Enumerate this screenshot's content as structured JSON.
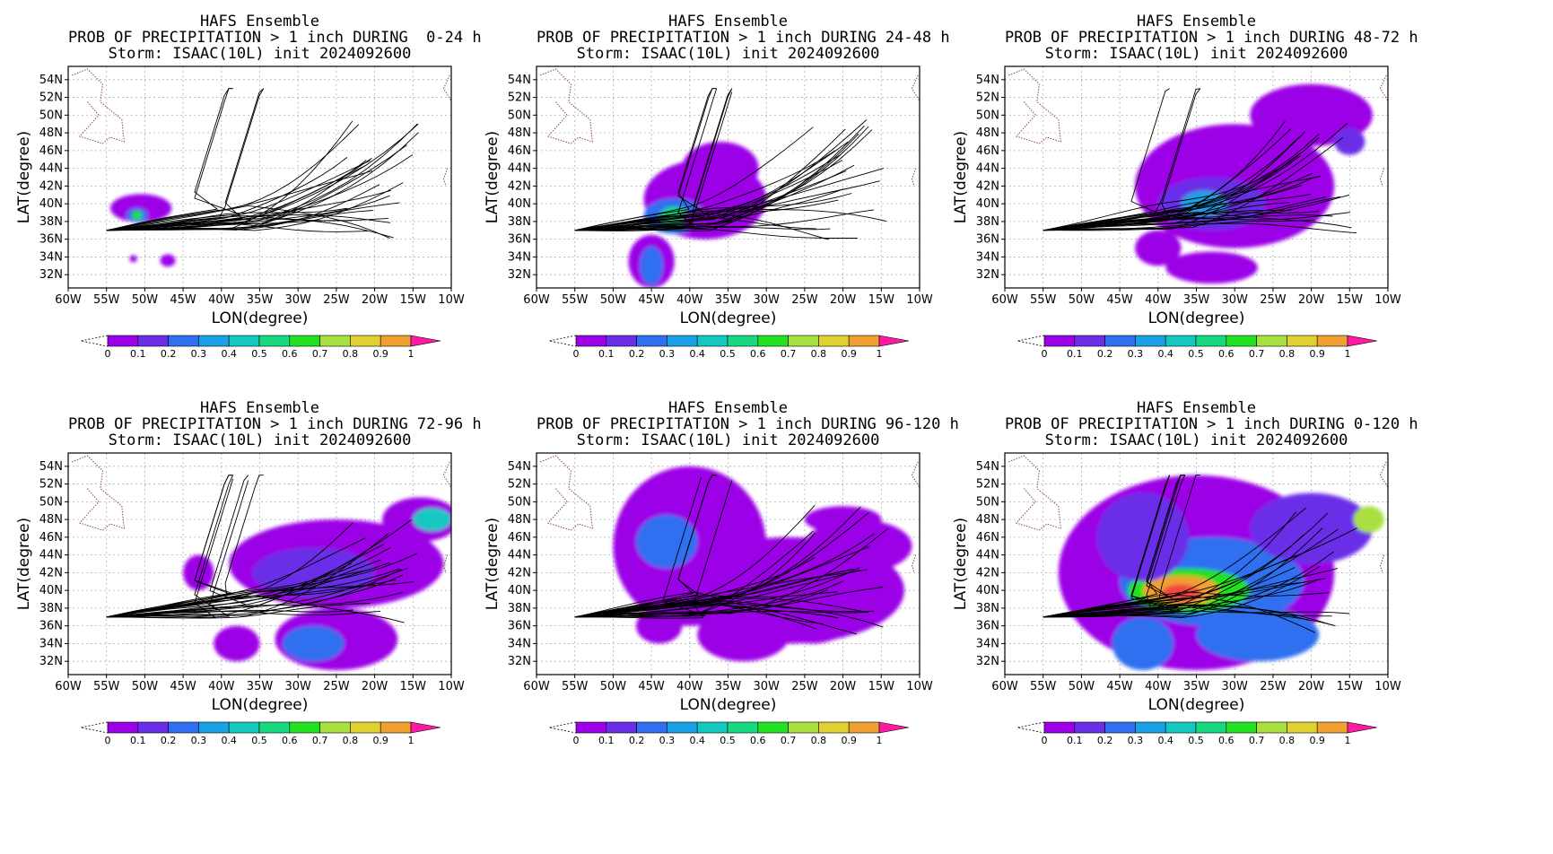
{
  "panels": [
    {
      "title1": "HAFS Ensemble",
      "title2": "PROB OF PRECIPITATION > 1 inch DURING  0-24 h",
      "title3": "Storm: ISAAC(10L) init 2024092600"
    },
    {
      "title1": "HAFS Ensemble",
      "title2": "PROB OF PRECIPITATION > 1 inch DURING 24-48 h",
      "title3": "Storm: ISAAC(10L) init 2024092600"
    },
    {
      "title1": "HAFS Ensemble",
      "title2": "PROB OF PRECIPITATION > 1 inch DURING 48-72 h",
      "title3": "Storm: ISAAC(10L) init 2024092600"
    },
    {
      "title1": "HAFS Ensemble",
      "title2": "PROB OF PRECIPITATION > 1 inch DURING 72-96 h",
      "title3": "Storm: ISAAC(10L) init 2024092600"
    },
    {
      "title1": "HAFS Ensemble",
      "title2": "PROB OF PRECIPITATION > 1 inch DURING 96-120 h",
      "title3": "Storm: ISAAC(10L) init 2024092600"
    },
    {
      "title1": "HAFS Ensemble",
      "title2": "PROB OF PRECIPITATION > 1 inch DURING 0-120 h",
      "title3": "Storm: ISAAC(10L) init 2024092600"
    }
  ],
  "axes": {
    "xlabel": "LON(degree)",
    "ylabel": "LAT(degree)",
    "xticks": [
      "60W",
      "55W",
      "50W",
      "45W",
      "40W",
      "35W",
      "30W",
      "25W",
      "20W",
      "15W",
      "10W"
    ],
    "yticks": [
      "32N",
      "34N",
      "36N",
      "38N",
      "40N",
      "42N",
      "44N",
      "46N",
      "48N",
      "50N",
      "52N",
      "54N"
    ]
  },
  "colorbar": {
    "labels": [
      "0",
      "0.1",
      "0.2",
      "0.3",
      "0.4",
      "0.5",
      "0.6",
      "0.7",
      "0.8",
      "0.9",
      "1"
    ],
    "colors": [
      "#9b00e6",
      "#6a2ee8",
      "#2f6ff0",
      "#1aa0e6",
      "#14c8c0",
      "#18d880",
      "#22e022",
      "#a8e040",
      "#e0d030",
      "#f0a030",
      "#f04840",
      "#ff1aa0"
    ]
  }
}
